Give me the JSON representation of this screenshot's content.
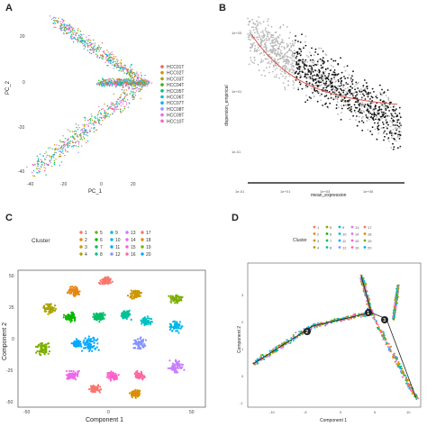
{
  "panels": {
    "a": {
      "label": "A",
      "xlabel": "PC_1",
      "ylabel": "PC_2",
      "xticks": [
        "-40",
        "-20",
        "0",
        "20"
      ],
      "yticks": [
        "20",
        "0",
        "-20",
        "-40"
      ],
      "legend": [
        {
          "name": "HCC01T",
          "color": "#f0605a"
        },
        {
          "name": "HCC02T",
          "color": "#d99000"
        },
        {
          "name": "HCC03T",
          "color": "#a3a500"
        },
        {
          "name": "HCC04T",
          "color": "#39b600"
        },
        {
          "name": "HCC05T",
          "color": "#00bf7d"
        },
        {
          "name": "HCC06T",
          "color": "#00bfc4"
        },
        {
          "name": "HCC07T",
          "color": "#00b0f6"
        },
        {
          "name": "HCC08T",
          "color": "#9590ff"
        },
        {
          "name": "HCC09T",
          "color": "#e76bf3"
        },
        {
          "name": "HCC10T",
          "color": "#ff62bc"
        }
      ]
    },
    "b": {
      "label": "B",
      "xlabel": "mean_expression",
      "ylabel": "dispersion_empirical",
      "xticks": [
        "1e-01",
        "1e+01",
        "1e+03",
        "1e+05"
      ],
      "yticks": [
        "1e+03",
        "1e+01",
        "1e-01"
      ]
    },
    "c": {
      "label": "C",
      "legend_title": "Cluster",
      "clusters": [
        "1",
        "2",
        "3",
        "4",
        "5",
        "6",
        "7",
        "8",
        "9",
        "10",
        "11",
        "12",
        "13",
        "14",
        "15",
        "16",
        "17",
        "18",
        "19",
        "20"
      ],
      "colors": [
        "#f8766d",
        "#e68613",
        "#cd9600",
        "#aba300",
        "#7cae00",
        "#0cb702",
        "#00be67",
        "#00c19a",
        "#00bfc4",
        "#00b8e7",
        "#00a9ff",
        "#8494ff",
        "#c77cff",
        "#ed68ed",
        "#ff61cc",
        "#ff68a1",
        "#f8766d",
        "#de8c00",
        "#7cae00",
        "#00a9ff"
      ],
      "xlabel": "Component 1",
      "ylabel": "Component 2",
      "xticks": [
        "-50",
        "0",
        "50"
      ],
      "yticks": [
        "50",
        "25",
        "0",
        "-25",
        "-50"
      ]
    },
    "d": {
      "label": "D",
      "legend_title": "Cluster",
      "xlabel": "Component 1",
      "ylabel": "Component 2",
      "xticks": [
        "-10",
        "-5",
        "0",
        "5",
        "10"
      ],
      "yticks": [
        "3",
        "2",
        "1",
        "0",
        "-1"
      ],
      "branch_nodes": [
        "1",
        "2",
        "3"
      ]
    }
  }
}
